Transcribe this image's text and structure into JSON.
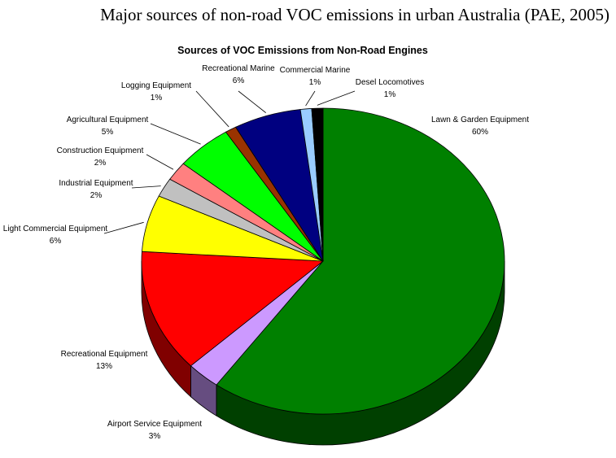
{
  "caption": "Major sources of non-road VOC emissions in urban Australia (PAE, 2005)",
  "chart_data": {
    "type": "pie",
    "title": "Sources of VOC Emissions from Non-Road Engines",
    "slices": [
      {
        "label": "Lawn & Garden Equipment",
        "value_label": "60%",
        "value": 60,
        "color": "#008000"
      },
      {
        "label": "Airport Service Equipment",
        "value_label": "3%",
        "value": 3,
        "color": "#cc99ff"
      },
      {
        "label": "Recreational Equipment",
        "value_label": "13%",
        "value": 13,
        "color": "#ff0000"
      },
      {
        "label": "Light Commercial Equipment",
        "value_label": "6%",
        "value": 6,
        "color": "#ffff00"
      },
      {
        "label": "Industrial Equipment",
        "value_label": "2%",
        "value": 2,
        "color": "#c0c0c0"
      },
      {
        "label": "Construction Equipment",
        "value_label": "2%",
        "value": 2,
        "color": "#ff8080"
      },
      {
        "label": "Agricultural Equipment",
        "value_label": "5%",
        "value": 5,
        "color": "#00ff00"
      },
      {
        "label": "Logging Equipment",
        "value_label": "1%",
        "value": 1,
        "color": "#993300"
      },
      {
        "label": "Recreational Marine",
        "value_label": "6%",
        "value": 6,
        "color": "#000080"
      },
      {
        "label": "Commercial Marine",
        "value_label": "1%",
        "value": 1,
        "color": "#99ccff"
      },
      {
        "label": "Desel Locomotives",
        "value_label": "1%",
        "value": 1,
        "color": "#000000"
      }
    ],
    "legend": "none",
    "style": "3d-pie"
  }
}
